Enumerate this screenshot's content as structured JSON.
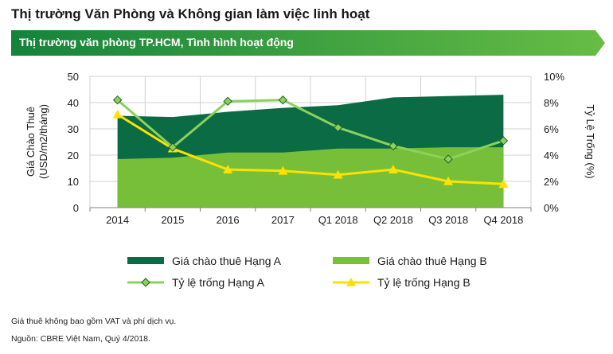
{
  "title": "Thị trường Văn Phòng và Không gian làm việc linh hoạt",
  "subtitle": "Thị trường văn phòng TP.HCM, Tình hình hoạt động",
  "note": "Giá thuê không bao gồm VAT và phí dịch vụ.",
  "source": "Nguồn: CBRE Việt Nam, Quý 4/2018.",
  "colors": {
    "banner_start": "#14833b",
    "banner_end": "#67bd45",
    "grade_a_area": "#0b6b45",
    "grade_b_area": "#78bf39",
    "vacancy_a_line": "#8bd15b",
    "vacancy_b_line": "#ffe100"
  },
  "chart_data": {
    "type": "area",
    "categories": [
      "2014",
      "2015",
      "2016",
      "2017",
      "Q1 2018",
      "Q2 2018",
      "Q3 2018",
      "Q4 2018"
    ],
    "ylabel": "Giá Chào Thuê (USD/m2/tháng)",
    "ylabel_line1": "Giá Chào Thuê",
    "ylabel_line2": "(USD/m2/tháng)",
    "y2label": "Tỷ Lệ Trống (%)",
    "ylim": [
      0,
      50
    ],
    "yticks": [
      "0",
      "10",
      "20",
      "30",
      "40",
      "50"
    ],
    "y2lim": [
      0,
      10
    ],
    "y2ticks": [
      "0%",
      "2%",
      "4%",
      "6%",
      "8%",
      "10%"
    ],
    "grid": true,
    "legend_placement": "bottom",
    "series": [
      {
        "name": "Giá chào thuê Hạng A",
        "kind": "area",
        "axis": "left",
        "values": [
          35,
          34.5,
          36.5,
          38,
          39,
          42,
          42.5,
          43
        ]
      },
      {
        "name": "Giá chào thuê Hạng B",
        "kind": "area",
        "axis": "left",
        "values": [
          18.5,
          19,
          21,
          21,
          22.5,
          22.5,
          23,
          23
        ]
      },
      {
        "name": "Tỷ lệ trống Hạng A",
        "kind": "line",
        "marker": "diamond",
        "axis": "right",
        "values": [
          8.2,
          4.6,
          8.1,
          8.2,
          6.1,
          4.7,
          3.7,
          5.1
        ]
      },
      {
        "name": "Tỷ lệ trống Hạng B",
        "kind": "line",
        "marker": "triangle",
        "axis": "right",
        "values": [
          7.1,
          4.5,
          2.9,
          2.8,
          2.5,
          2.9,
          2.0,
          1.8
        ]
      }
    ]
  }
}
